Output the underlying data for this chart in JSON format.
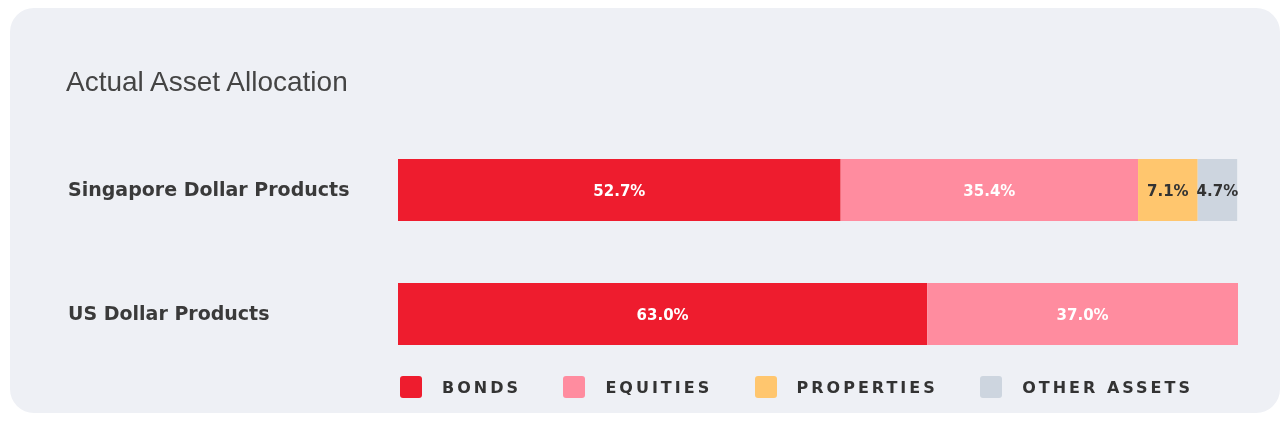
{
  "chart_data": {
    "type": "bar",
    "orientation": "horizontal",
    "stacked": true,
    "title": "Actual Asset Allocation",
    "categories": [
      "Singapore Dollar Products",
      "US Dollar Products"
    ],
    "xlim": [
      0,
      100
    ],
    "tick_labels": "y",
    "grid": false,
    "legend": "bottom",
    "series": [
      {
        "name": "BONDS",
        "color": "#ee1c2e",
        "values": [
          52.7,
          63.0
        ],
        "value_labels": [
          "52.7%",
          "63.0%"
        ]
      },
      {
        "name": "EQUITIES",
        "color": "#ff8c9f",
        "values": [
          35.4,
          37.0
        ],
        "value_labels": [
          "35.4%",
          "37.0%"
        ]
      },
      {
        "name": "PROPERTIES",
        "color": "#ffc66e",
        "values": [
          7.1,
          null
        ],
        "value_labels": [
          "7.1%",
          null
        ]
      },
      {
        "name": "OTHER ASSETS",
        "color": "#cdd5df",
        "values": [
          4.7,
          null
        ],
        "value_labels": [
          "4.7%",
          null
        ]
      }
    ]
  }
}
